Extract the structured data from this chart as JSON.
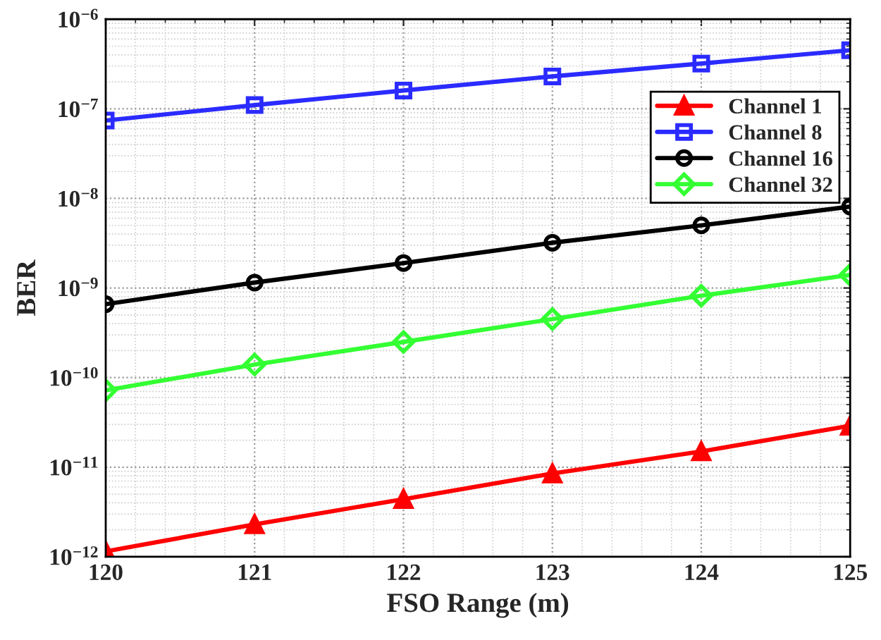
{
  "chart_data": {
    "type": "line",
    "xlabel": "FSO Range (m)",
    "ylabel": "BER",
    "x": [
      120,
      121,
      122,
      123,
      124,
      125
    ],
    "series": [
      {
        "name": "Channel 1",
        "color": "#ff0000",
        "marker": "triangle",
        "values": [
          1.15e-12,
          2.3e-12,
          4.4e-12,
          8.5e-12,
          1.5e-11,
          2.9e-11
        ]
      },
      {
        "name": "Channel 8",
        "color": "#2b2bff",
        "marker": "square",
        "values": [
          7.4e-08,
          1.1e-07,
          1.6e-07,
          2.3e-07,
          3.2e-07,
          4.5e-07
        ]
      },
      {
        "name": "Channel 16",
        "color": "#000000",
        "marker": "circle",
        "values": [
          6.6e-10,
          1.15e-09,
          1.9e-09,
          3.2e-09,
          5e-09,
          8.1e-09
        ]
      },
      {
        "name": "Channel 32",
        "color": "#33ff33",
        "marker": "diamond",
        "values": [
          7.2e-11,
          1.4e-10,
          2.5e-10,
          4.5e-10,
          8.2e-10,
          1.4e-09
        ]
      }
    ],
    "log": "y",
    "xlim": [
      120,
      125
    ],
    "ylim": [
      1e-12,
      1e-06
    ],
    "xticks": [
      120,
      121,
      122,
      123,
      124,
      125
    ],
    "yticks": [
      {
        "value": 1e-12,
        "label": "10$^{−12}$"
      },
      {
        "value": 1e-11,
        "label": "10$^{−11}$"
      },
      {
        "value": 1e-10,
        "label": "10$^{−10}$"
      },
      {
        "value": 1e-09,
        "label": "10$^{−9}$"
      },
      {
        "value": 1e-08,
        "label": "10$^{−8}$"
      },
      {
        "value": 1e-07,
        "label": "10$^{−7}$"
      },
      {
        "value": 1e-06,
        "label": "10$^{−6}$"
      }
    ],
    "grid": true,
    "legend": "top right",
    "line_style": "solid"
  }
}
